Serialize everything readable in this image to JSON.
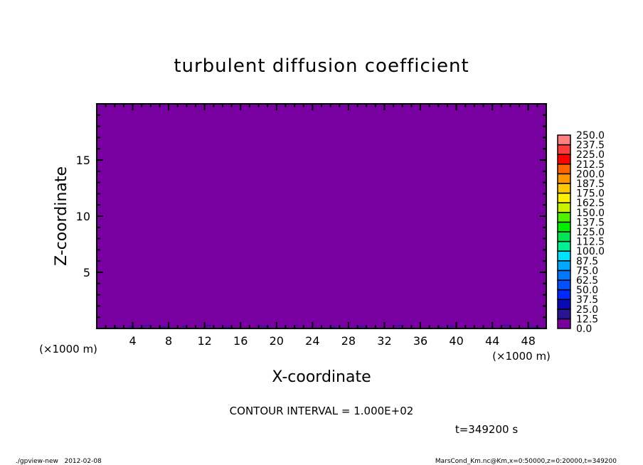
{
  "chart_data": {
    "type": "heatmap",
    "title": "turbulent diffusion coefficient",
    "xlabel": "X-coordinate",
    "ylabel": "Z-coordinate",
    "x_unit": "(×1000 m)",
    "y_unit": "(×1000 m)",
    "xlim": [
      0,
      50
    ],
    "ylim": [
      0,
      20
    ],
    "x_ticks": [
      4,
      8,
      12,
      16,
      20,
      24,
      28,
      32,
      36,
      40,
      44,
      48
    ],
    "y_ticks": [
      5,
      10,
      15
    ],
    "field_value": "0.0 to 12.5 throughout (near-uniform)",
    "colorbar": {
      "levels": [
        "0.0",
        "12.5",
        "25.0",
        "37.5",
        "50.0",
        "62.5",
        "75.0",
        "87.5",
        "100.0",
        "112.5",
        "125.0",
        "137.5",
        "150.0",
        "162.5",
        "175.0",
        "187.5",
        "200.0",
        "212.5",
        "225.0",
        "237.5",
        "250.0"
      ],
      "colors": [
        "#7800a0",
        "#2a1496",
        "#0a0ab4",
        "#0000dc",
        "#0028ff",
        "#0050ff",
        "#0078ff",
        "#00a8ff",
        "#00dcff",
        "#00f0c8",
        "#00f096",
        "#00e664",
        "#00f000",
        "#28f000",
        "#96f000",
        "#c8f000",
        "#fff000",
        "#ffc800",
        "#ff9600",
        "#ff6400",
        "#ff3200",
        "#ff0000",
        "#ff3c3c",
        "#ff7878"
      ],
      "position": "right"
    },
    "contour_interval": "CONTOUR INTERVAL = 1.000E+02",
    "time_label": "t=349200 s"
  },
  "footer": {
    "left": "./gpview-new   2012-02-08",
    "right": "MarsCond_Km.nc@Km,x=0:50000,z=0:20000,t=349200"
  }
}
